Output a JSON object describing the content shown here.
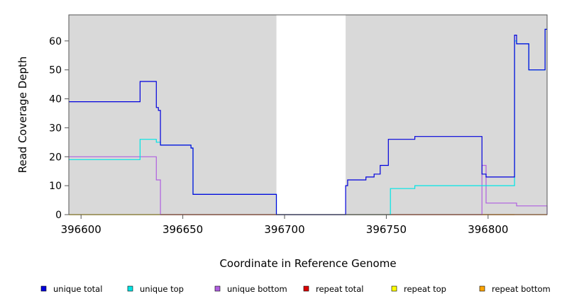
{
  "chart_data": {
    "type": "line",
    "title": "",
    "xlabel": "Coordinate in Reference Genome",
    "ylabel": "Read Coverage Depth",
    "xlim": [
      396594,
      396829
    ],
    "ylim": [
      0,
      69
    ],
    "x_ticks": [
      396600,
      396650,
      396700,
      396750,
      396800
    ],
    "x_tick_labels": [
      "396600",
      "396650",
      "396700",
      "396750",
      "396800"
    ],
    "y_ticks": [
      0,
      10,
      20,
      30,
      40,
      50,
      60
    ],
    "y_tick_labels": [
      "0",
      "10",
      "20",
      "30",
      "40",
      "50",
      "60"
    ],
    "shaded_regions": [
      {
        "x": [
          396594,
          396696
        ],
        "color": "#d9d9d9"
      },
      {
        "x": [
          396730,
          396829
        ],
        "color": "#d9d9d9"
      }
    ],
    "legend_placement": "bottom",
    "series": [
      {
        "name": "unique total",
        "color": "#0000dd",
        "step": true,
        "x": [
          396594,
          396629,
          396637,
          396638,
          396639,
          396654,
          396655,
          396696,
          396730,
          396731,
          396740,
          396744,
          396747,
          396751,
          396764,
          396797,
          396799,
          396813,
          396814,
          396815,
          396820,
          396828,
          396829
        ],
        "y": [
          39,
          46,
          37,
          36,
          24,
          23,
          7,
          0,
          10,
          12,
          13,
          14,
          17,
          26,
          27,
          14,
          13,
          62,
          59,
          59,
          50,
          64,
          64
        ]
      },
      {
        "name": "unique top",
        "color": "#00e5e5",
        "step": true,
        "x": [
          396594,
          396629,
          396637,
          396639,
          396654,
          396655,
          396696,
          396730,
          396752,
          396764,
          396813,
          396814,
          396815,
          396820,
          396828,
          396829
        ],
        "y": [
          19,
          26,
          25,
          24,
          23,
          7,
          0,
          0,
          9,
          10,
          60,
          59,
          59,
          50,
          64,
          64
        ]
      },
      {
        "name": "unique bottom",
        "color": "#b060e0",
        "step": true,
        "x": [
          396594,
          396637,
          396639,
          396797,
          396799,
          396814,
          396829
        ],
        "y": [
          20,
          12,
          0,
          17,
          4,
          3,
          0
        ]
      },
      {
        "name": "repeat total",
        "color": "#dd0000",
        "step": true,
        "x": [
          396639,
          396696,
          396730,
          396814,
          396829
        ],
        "y": [
          0,
          0,
          0,
          0,
          0
        ]
      },
      {
        "name": "repeat top",
        "color": "#ffff00",
        "step": true,
        "x": [
          396594,
          396829
        ],
        "y": [
          0,
          0
        ]
      },
      {
        "name": "repeat bottom",
        "color": "#ffa500",
        "step": true,
        "x": [
          396594,
          396696,
          396730,
          396813
        ],
        "y": [
          0,
          0,
          0,
          0
        ]
      }
    ]
  }
}
